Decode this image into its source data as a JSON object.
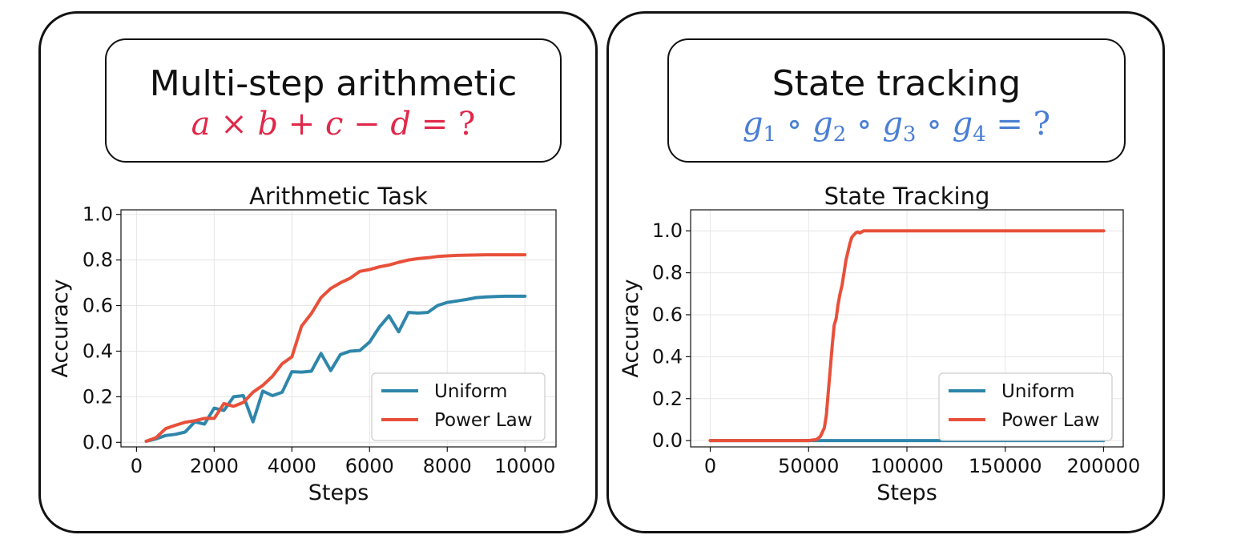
{
  "panels": [
    {
      "header_title": "Multi-step arithmetic",
      "formula": {
        "color": "#e0284a",
        "parts": [
          "a",
          "×",
          "b",
          "+",
          "c",
          "−",
          "d",
          "=",
          "?"
        ]
      }
    },
    {
      "header_title": "State tracking",
      "formula": {
        "color": "#4a7fd4",
        "parts": [
          "g",
          "1",
          "∘",
          "g",
          "2",
          "∘",
          "g",
          "3",
          "∘",
          "g",
          "4",
          "=",
          "?"
        ]
      }
    }
  ],
  "chart_data": [
    {
      "type": "line",
      "title": "Arithmetic Task",
      "xlabel": "Steps",
      "ylabel": "Accuracy",
      "xlim": [
        -400,
        10800
      ],
      "ylim": [
        -0.02,
        1.02
      ],
      "xticks": [
        0,
        2000,
        4000,
        6000,
        8000,
        10000
      ],
      "yticks": [
        0.0,
        0.2,
        0.4,
        0.6,
        0.8,
        1.0
      ],
      "xtick_labels": [
        "0",
        "2000",
        "4000",
        "6000",
        "8000",
        "10000"
      ],
      "ytick_labels": [
        "0.0",
        "0.2",
        "0.4",
        "0.6",
        "0.8",
        "1.0"
      ],
      "grid": true,
      "legend_position": "lower-right",
      "series": [
        {
          "name": "Uniform",
          "color": "#2e86ab",
          "x": [
            250,
            500,
            750,
            1000,
            1250,
            1500,
            1750,
            2000,
            2250,
            2500,
            2750,
            3000,
            3250,
            3500,
            3750,
            4000,
            4250,
            4500,
            4750,
            5000,
            5250,
            5500,
            5750,
            6000,
            6250,
            6500,
            6750,
            7000,
            7250,
            7500,
            7750,
            8000,
            8250,
            8500,
            8750,
            9000,
            9250,
            9500,
            9750,
            10000
          ],
          "y": [
            0.005,
            0.015,
            0.03,
            0.035,
            0.045,
            0.09,
            0.08,
            0.15,
            0.14,
            0.2,
            0.205,
            0.09,
            0.225,
            0.205,
            0.22,
            0.31,
            0.308,
            0.312,
            0.39,
            0.315,
            0.385,
            0.4,
            0.403,
            0.44,
            0.505,
            0.555,
            0.485,
            0.57,
            0.567,
            0.57,
            0.6,
            0.614,
            0.62,
            0.627,
            0.635,
            0.638,
            0.64,
            0.641,
            0.641,
            0.641
          ]
        },
        {
          "name": "Power Law",
          "color": "#e8503a",
          "x": [
            250,
            500,
            750,
            1000,
            1250,
            1500,
            1750,
            2000,
            2250,
            2500,
            2750,
            3000,
            3250,
            3500,
            3750,
            4000,
            4250,
            4500,
            4750,
            5000,
            5250,
            5500,
            5750,
            6000,
            6250,
            6500,
            6750,
            7000,
            7250,
            7500,
            7750,
            8000,
            8250,
            8500,
            8750,
            9000,
            9250,
            9500,
            9750,
            10000
          ],
          "y": [
            0.005,
            0.02,
            0.06,
            0.075,
            0.088,
            0.095,
            0.105,
            0.105,
            0.17,
            0.158,
            0.175,
            0.22,
            0.25,
            0.29,
            0.345,
            0.375,
            0.51,
            0.565,
            0.635,
            0.675,
            0.7,
            0.72,
            0.75,
            0.758,
            0.77,
            0.778,
            0.79,
            0.8,
            0.806,
            0.81,
            0.815,
            0.818,
            0.82,
            0.821,
            0.822,
            0.823,
            0.823,
            0.823,
            0.823,
            0.823
          ]
        }
      ]
    },
    {
      "type": "line",
      "title": "State Tracking",
      "xlabel": "Steps",
      "ylabel": "Accuracy",
      "xlim": [
        -10000,
        210000
      ],
      "ylim": [
        -0.03,
        1.1
      ],
      "xticks": [
        0,
        50000,
        100000,
        150000,
        200000
      ],
      "yticks": [
        0.0,
        0.2,
        0.4,
        0.6,
        0.8,
        1.0
      ],
      "xtick_labels": [
        "0",
        "50000",
        "100000",
        "150000",
        "200000"
      ],
      "ytick_labels": [
        "0.0",
        "0.2",
        "0.4",
        "0.6",
        "0.8",
        "1.0"
      ],
      "grid": true,
      "legend_position": "lower-right",
      "series": [
        {
          "name": "Uniform",
          "color": "#2e86ab",
          "x": [
            0,
            50000,
            100000,
            150000,
            200000
          ],
          "y": [
            0.0,
            0.0,
            0.0,
            0.0,
            0.0
          ]
        },
        {
          "name": "Power Law",
          "color": "#e8503a",
          "x": [
            0,
            50000,
            54000,
            56000,
            58000,
            59000,
            60000,
            61000,
            62000,
            63000,
            64000,
            65000,
            66000,
            67000,
            68000,
            69000,
            70000,
            71000,
            72000,
            73000,
            74000,
            75000,
            76000,
            78000,
            80000,
            85000,
            100000,
            150000,
            200000
          ],
          "y": [
            0.0,
            0.0,
            0.005,
            0.02,
            0.06,
            0.12,
            0.23,
            0.34,
            0.45,
            0.55,
            0.58,
            0.65,
            0.7,
            0.74,
            0.8,
            0.86,
            0.9,
            0.94,
            0.97,
            0.98,
            0.99,
            0.995,
            0.99,
            1.0,
            1.0,
            1.0,
            1.0,
            1.0,
            1.0
          ]
        }
      ]
    }
  ]
}
